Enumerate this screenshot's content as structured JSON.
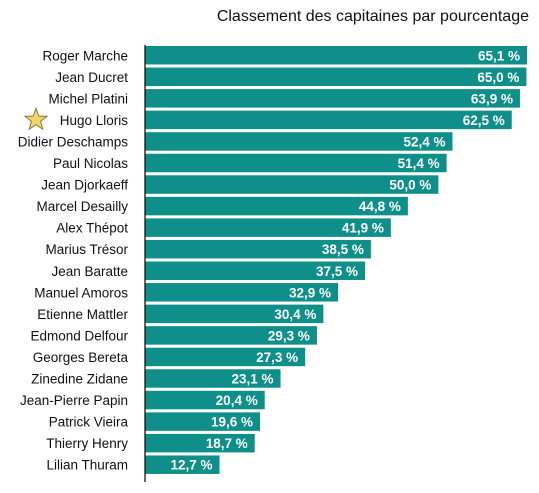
{
  "chart_data": {
    "type": "bar",
    "orientation": "horizontal",
    "title": "Classement des capitaines par pourcentage",
    "xlabel": "",
    "ylabel": "",
    "xlim": [
      0,
      70
    ],
    "grid": false,
    "legend": "none",
    "colors": {
      "bar": "#0e8f8a",
      "label": "#ffffff",
      "axis": "#000000",
      "star": "#f3d36b",
      "star_stroke": "#8a7a3a"
    },
    "highlight": {
      "category": "Hugo Lloris",
      "icon": "star-icon"
    },
    "categories": [
      "Roger Marche",
      "Jean Ducret",
      "Michel Platini",
      "Hugo Lloris",
      "Didier Deschamps",
      "Paul Nicolas",
      "Jean Djorkaeff",
      "Marcel Desailly",
      "Alex Thépot",
      "Marius Trésor",
      "Jean Baratte",
      "Manuel Amoros",
      "Etienne Mattler",
      "Edmond Delfour",
      "Georges Bereta",
      "Zinedine Zidane",
      "Jean-Pierre Papin",
      "Patrick Vieira",
      "Thierry Henry",
      "Lilian Thuram"
    ],
    "values": [
      65.1,
      65.0,
      63.9,
      62.5,
      52.4,
      51.4,
      50.0,
      44.8,
      41.9,
      38.5,
      37.5,
      32.9,
      30.4,
      29.3,
      27.3,
      23.1,
      20.4,
      19.6,
      18.7,
      12.7
    ],
    "value_labels": [
      "65,1 %",
      "65,0 %",
      "63,9 %",
      "62,5 %",
      "52,4 %",
      "51,4 %",
      "50,0 %",
      "44,8 %",
      "41,9 %",
      "38,5 %",
      "37,5 %",
      "32,9 %",
      "30,4 %",
      "29,3 %",
      "27,3 %",
      "23,1 %",
      "20,4 %",
      "19,6 %",
      "18,7 %",
      "12,7 %"
    ]
  }
}
